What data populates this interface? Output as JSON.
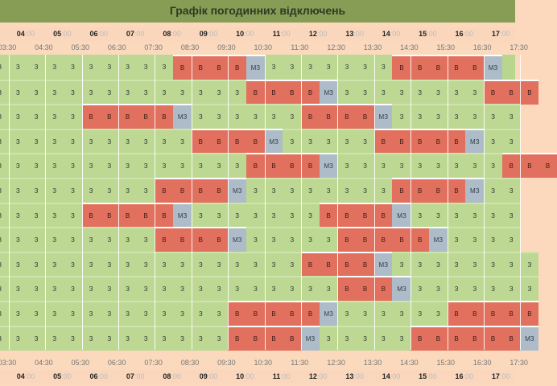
{
  "title": "Графік погодинних відключень",
  "hours": [
    "04",
    "05",
    "06",
    "07",
    "08",
    "09",
    "10",
    "11",
    "12",
    "13",
    "14",
    "15",
    "16",
    "17"
  ],
  "minutes": ":00",
  "half_ticks": [
    "03:30",
    "04:30",
    "05:30",
    "06:30",
    "07:30",
    "08:30",
    "09:30",
    "10:30",
    "11:30",
    "12:30",
    "13:30",
    "14:30",
    "15:30",
    "16:30",
    "17:30"
  ],
  "legend": {
    "Z": "З",
    "V": "В",
    "MZ": "МЗ"
  },
  "colors": {
    "z": "#bdd893",
    "v": "#e2705e",
    "mz": "#adbcc8",
    "header_green": "#879d55",
    "peach": "#fad7bc"
  },
  "rows": [
    "ZZZZZZZZZZVVVVMZZZZZZZZVVVVVMZ",
    "ZZZZZZZZZZZZZZVVVVMZZZZZZZZZVVV",
    "ZZZZZVVVVVMZZZZZZZVVVVMZZZZZZZZ",
    "ZZZZZZZZZZZVVVVMZZZZZZVVVVVMZZZ",
    "ZZZZZZZZZZZZZZVVVVMZZZZZZZZZZVVV",
    "ZZZZZZZZZVVVVMZZZZZZZZZVVVVMZZZ",
    "ZZZZZVVVVVMZZZZZZZZVVVVMZZZZZZZ",
    "ZZZZZZZZZVVVVMZZZZZZVVVVVMZZZZZ",
    "ZZZZZZZZZZZZZZZZZVVVVMZZZZZZZZZ",
    "ZZZZZZZZZZZZZZZZZZZVVVMZZZZZZZZ",
    "ZZZZZZZZZZZZZVVVVVMZZZZZZZVVVVV",
    "ZZZZZZZZZZZZZVVVVMZZZZZZVVVVVVMZ"
  ]
}
